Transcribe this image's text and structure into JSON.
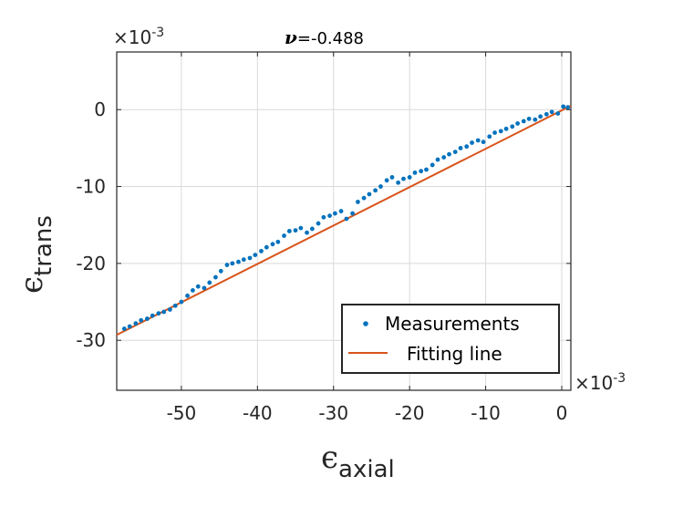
{
  "chart_data": {
    "type": "scatter",
    "title_symbol": "ν",
    "title_value": "=-0.488",
    "xlabel_main": "ϵ",
    "xlabel_sub": "axial",
    "ylabel_main": "ϵ",
    "ylabel_sub": "trans",
    "x_exponent_base": "×10",
    "x_exponent_power": "-3",
    "y_exponent_base": "×10",
    "y_exponent_power": "-3",
    "xlim": [
      -58.5,
      1.2
    ],
    "ylim": [
      -36.5,
      7.5
    ],
    "xticks": [
      -50,
      -40,
      -30,
      -20,
      -10,
      0
    ],
    "yticks": [
      -30,
      -20,
      -10,
      0
    ],
    "xtick_labels": [
      "-50",
      "-40",
      "-30",
      "-20",
      "-10",
      "0"
    ],
    "ytick_labels": [
      "-30",
      "-20",
      "-10",
      "0"
    ],
    "grid": true,
    "legend_position": "bottom-right",
    "series": [
      {
        "name": "Measurements",
        "kind": "scatter",
        "color": "#0072BD",
        "x": [
          -57.5,
          -56.8,
          -56.0,
          -55.3,
          -54.5,
          -53.8,
          -53.0,
          -52.3,
          -51.5,
          -50.8,
          -50.0,
          -49.2,
          -48.5,
          -47.8,
          -47.0,
          -46.3,
          -45.5,
          -44.8,
          -44.0,
          -43.3,
          -42.5,
          -41.8,
          -41.0,
          -40.3,
          -39.5,
          -38.8,
          -38.0,
          -37.3,
          -36.5,
          -35.8,
          -35.0,
          -34.3,
          -33.5,
          -32.8,
          -32.0,
          -31.3,
          -30.5,
          -29.8,
          -29.0,
          -28.3,
          -27.5,
          -26.8,
          -26.0,
          -25.3,
          -24.5,
          -23.8,
          -23.0,
          -22.3,
          -21.5,
          -20.8,
          -20.0,
          -19.3,
          -18.5,
          -17.8,
          -17.0,
          -16.3,
          -15.5,
          -14.8,
          -14.0,
          -13.3,
          -12.5,
          -11.8,
          -11.0,
          -10.3,
          -9.5,
          -8.8,
          -8.0,
          -7.3,
          -6.5,
          -5.8,
          -5.0,
          -4.3,
          -3.5,
          -2.8,
          -2.0,
          -1.3,
          -0.5,
          0.2,
          0.8
        ],
        "y": [
          -28.5,
          -28.2,
          -27.8,
          -27.4,
          -27.2,
          -26.8,
          -26.5,
          -26.3,
          -26.0,
          -25.5,
          -25.0,
          -24.2,
          -23.5,
          -23.0,
          -23.2,
          -22.5,
          -21.8,
          -21.0,
          -20.2,
          -20.0,
          -19.8,
          -19.5,
          -19.3,
          -18.9,
          -18.4,
          -17.9,
          -17.5,
          -17.2,
          -16.4,
          -15.8,
          -15.7,
          -15.4,
          -16.0,
          -15.5,
          -14.8,
          -14.0,
          -13.8,
          -13.5,
          -13.2,
          -14.2,
          -13.5,
          -12.0,
          -11.5,
          -11.0,
          -10.5,
          -10.0,
          -9.2,
          -8.8,
          -9.5,
          -9.0,
          -8.8,
          -8.2,
          -8.0,
          -7.8,
          -7.2,
          -6.5,
          -6.2,
          -5.8,
          -5.5,
          -5.0,
          -4.8,
          -4.3,
          -4.0,
          -4.2,
          -3.5,
          -3.0,
          -2.8,
          -2.5,
          -2.2,
          -1.8,
          -1.5,
          -1.2,
          -1.3,
          -0.9,
          -0.6,
          -0.3,
          -0.5,
          0.4,
          0.3
        ]
      },
      {
        "name": "Fitting line",
        "kind": "line",
        "color": "#D95319",
        "x": [
          -58.5,
          1.2
        ],
        "y": [
          -29.3,
          0.5
        ]
      }
    ]
  }
}
